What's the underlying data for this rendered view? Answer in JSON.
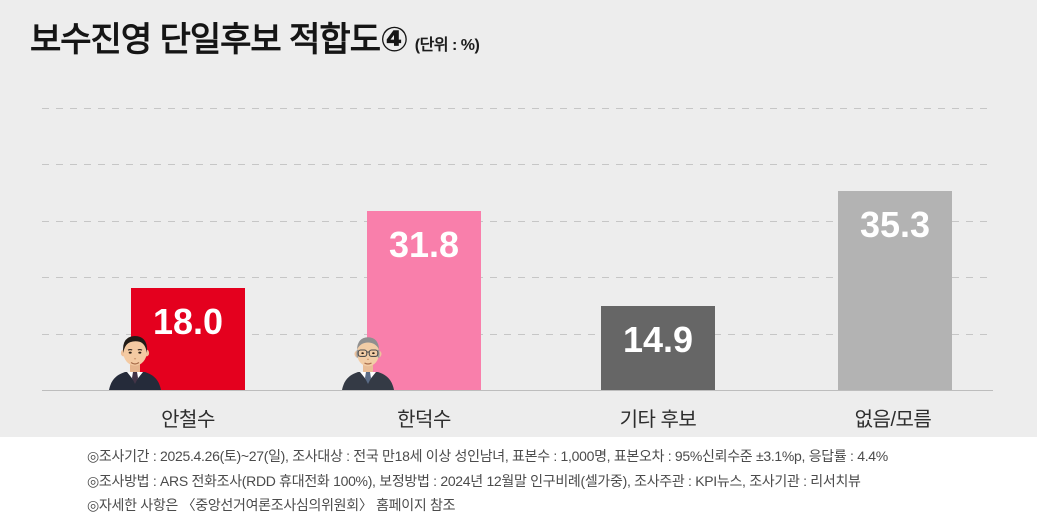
{
  "title": {
    "text": "보수진영 단일후보 적합도④",
    "unit": "(단위 : %)"
  },
  "chart_data": {
    "type": "bar",
    "title": "보수진영 단일후보 적합도④",
    "unit": "%",
    "categories": [
      "안철수",
      "한덕수",
      "기타 후보",
      "없음/모름"
    ],
    "values": [
      18.0,
      31.8,
      14.9,
      35.3
    ],
    "colors": [
      "#e4001e",
      "#f97fab",
      "#666666",
      "#b3b3b3"
    ],
    "value_label_color": "#ffffff",
    "ylim": [
      0,
      50
    ],
    "gridlines": [
      10,
      20,
      30,
      40,
      50
    ],
    "grid_style": "dashed-horizontal",
    "legend": "none",
    "axis_tick_labels": "none"
  },
  "icons": {
    "bar1_portrait": "ahn-cheolsoo-portrait",
    "bar2_portrait": "han-ducksoo-portrait"
  },
  "footer": {
    "lines": [
      "◎조사기간 : 2025.4.26(토)~27(일), 조사대상 : 전국 만18세 이상 성인남녀, 표본수 : 1,000명, 표본오차 : 95%신뢰수준 ±3.1%p, 응답률 : 4.4%",
      "◎조사방법 : ARS 전화조사(RDD 휴대전화 100%), 보정방법 : 2024년 12월말 인구비례(셀가중), 조사주관 : KPI뉴스, 조사기관 : 리서치뷰",
      "◎자세한 사항은 〈중앙선거여론조사심의위원회〉 홈페이지 참조"
    ]
  }
}
